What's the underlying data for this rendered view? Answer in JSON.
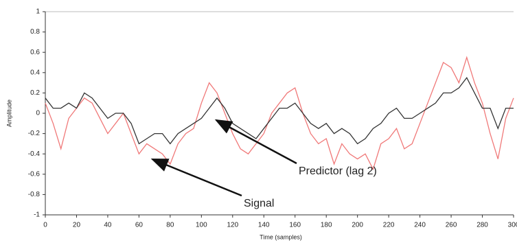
{
  "chart_data": {
    "type": "line",
    "xlabel": "Time (samples)",
    "ylabel": "Amplitude",
    "x": [
      0,
      5,
      10,
      15,
      20,
      25,
      30,
      35,
      40,
      45,
      50,
      55,
      60,
      65,
      70,
      75,
      80,
      85,
      90,
      95,
      100,
      105,
      110,
      115,
      120,
      125,
      130,
      135,
      140,
      145,
      150,
      155,
      160,
      165,
      170,
      175,
      180,
      185,
      190,
      195,
      200,
      205,
      210,
      215,
      220,
      225,
      230,
      235,
      240,
      245,
      250,
      255,
      260,
      265,
      270,
      275,
      280,
      285,
      290,
      295,
      300
    ],
    "series": [
      {
        "name": "Signal",
        "color": "#f07878",
        "values": [
          0.1,
          -0.1,
          -0.35,
          -0.05,
          0.05,
          0.15,
          0.1,
          -0.05,
          -0.2,
          -0.1,
          0,
          -0.2,
          -0.4,
          -0.3,
          -0.35,
          -0.4,
          -0.5,
          -0.3,
          -0.2,
          -0.15,
          0.1,
          0.3,
          0.2,
          0,
          -0.2,
          -0.35,
          -0.4,
          -0.3,
          -0.2,
          0,
          0.1,
          0.2,
          0.25,
          0,
          -0.2,
          -0.3,
          -0.25,
          -0.5,
          -0.3,
          -0.4,
          -0.45,
          -0.4,
          -0.55,
          -0.3,
          -0.25,
          -0.15,
          -0.35,
          -0.3,
          -0.1,
          0.1,
          0.3,
          0.5,
          0.45,
          0.3,
          0.55,
          0.3,
          0.1,
          -0.2,
          -0.45,
          -0.05,
          0.15
        ]
      },
      {
        "name": "Predictor (lag 2)",
        "color": "#333333",
        "values": [
          0.15,
          0.05,
          0.05,
          0.1,
          0.05,
          0.2,
          0.15,
          0.05,
          -0.05,
          0,
          0,
          -0.1,
          -0.3,
          -0.25,
          -0.2,
          -0.2,
          -0.3,
          -0.2,
          -0.15,
          -0.1,
          -0.05,
          0.05,
          0.15,
          0.05,
          -0.1,
          -0.15,
          -0.2,
          -0.25,
          -0.15,
          -0.05,
          0.05,
          0.05,
          0.1,
          0,
          -0.1,
          -0.15,
          -0.1,
          -0.2,
          -0.15,
          -0.2,
          -0.3,
          -0.25,
          -0.15,
          -0.1,
          0,
          0.05,
          -0.05,
          -0.05,
          0,
          0.05,
          0.1,
          0.2,
          0.2,
          0.25,
          0.35,
          0.2,
          0.05,
          0.05,
          -0.15,
          0.05,
          0.05
        ]
      }
    ],
    "xlim": [
      0,
      300
    ],
    "xticks": [
      0,
      20,
      40,
      60,
      80,
      100,
      120,
      140,
      160,
      180,
      200,
      220,
      240,
      260,
      280,
      300
    ],
    "ylim": [
      -1,
      1
    ],
    "yticks": [
      -1,
      -0.8,
      -0.6,
      -0.4,
      -0.2,
      0,
      0.2,
      0.4,
      0.6,
      0.8,
      1
    ]
  }
}
